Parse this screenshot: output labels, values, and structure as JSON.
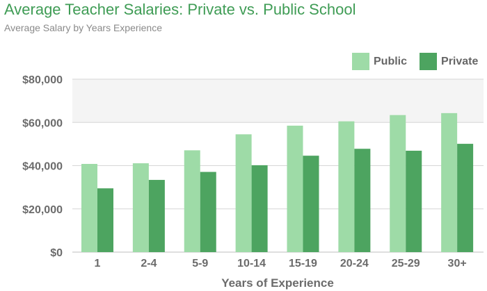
{
  "colors": {
    "public": "#9edba7",
    "private": "#4da460",
    "title": "#3f9c55"
  },
  "chart_data": {
    "type": "bar",
    "title": "Average Teacher Salaries: Private vs. Public School",
    "subtitle": "Average Salary by Years Experience",
    "xlabel": "Years of Experience",
    "ylabel": "",
    "categories": [
      "1",
      "2-4",
      "5-9",
      "10-14",
      "15-19",
      "20-24",
      "25-29",
      "30+"
    ],
    "series": [
      {
        "name": "Public",
        "values": [
          40800,
          41100,
          47100,
          54500,
          58500,
          60500,
          63400,
          64300
        ]
      },
      {
        "name": "Private",
        "values": [
          29500,
          33400,
          37100,
          40200,
          44600,
          47800,
          46900,
          50100
        ]
      }
    ],
    "ylim": [
      0,
      80000
    ],
    "yticks": [
      0,
      20000,
      40000,
      60000,
      80000
    ],
    "ytick_labels": [
      "$0",
      "$20,000",
      "$40,000",
      "$60,000",
      "$80,000"
    ],
    "grid": true,
    "legend": "top-right"
  }
}
